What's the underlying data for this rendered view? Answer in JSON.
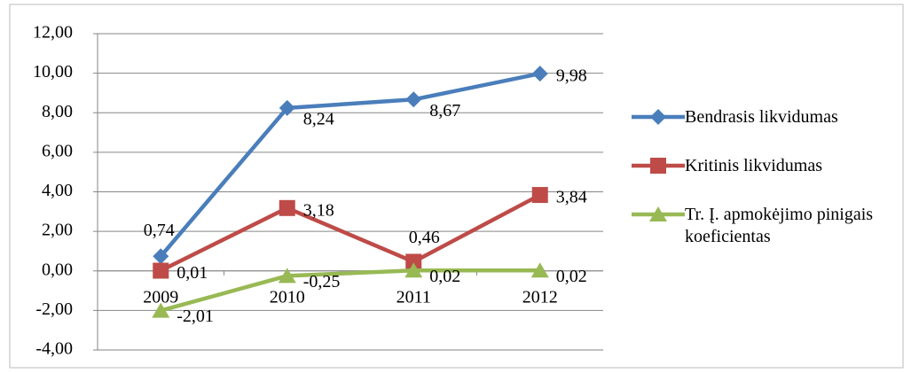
{
  "chart_data": {
    "type": "line",
    "categories": [
      "2009",
      "2010",
      "2011",
      "2012"
    ],
    "series": [
      {
        "name": "Bendrasis likvidumas",
        "color": "#4a7ebb",
        "marker": "diamond",
        "values": [
          0.74,
          8.24,
          8.67,
          9.98
        ],
        "value_labels": [
          "0,74",
          "8,24",
          "8,67",
          "9,98"
        ]
      },
      {
        "name": "Kritinis likvidumas",
        "color": "#be4b48",
        "marker": "square",
        "values": [
          0.01,
          3.18,
          0.46,
          3.84
        ],
        "value_labels": [
          "0,01",
          "3,18",
          "0,46",
          "3,84"
        ]
      },
      {
        "name": "Tr. Į. apmokėjimo pinigais koeficientas",
        "color": "#98b954",
        "marker": "triangle",
        "values": [
          -2.01,
          -0.25,
          0.02,
          0.02
        ],
        "value_labels": [
          "-2,01",
          "-0,25",
          "0,02",
          "0,02"
        ]
      }
    ],
    "ylim": [
      -4,
      12
    ],
    "yticks": [
      {
        "value": -4,
        "label": "-4,00"
      },
      {
        "value": -2,
        "label": "-2,00"
      },
      {
        "value": 0,
        "label": "0,00"
      },
      {
        "value": 2,
        "label": "2,00"
      },
      {
        "value": 4,
        "label": "4,00"
      },
      {
        "value": 6,
        "label": "6,00"
      },
      {
        "value": 8,
        "label": "8,00"
      },
      {
        "value": 10,
        "label": "10,00"
      },
      {
        "value": 12,
        "label": "12,00"
      }
    ],
    "grid": true,
    "legend": "right"
  }
}
